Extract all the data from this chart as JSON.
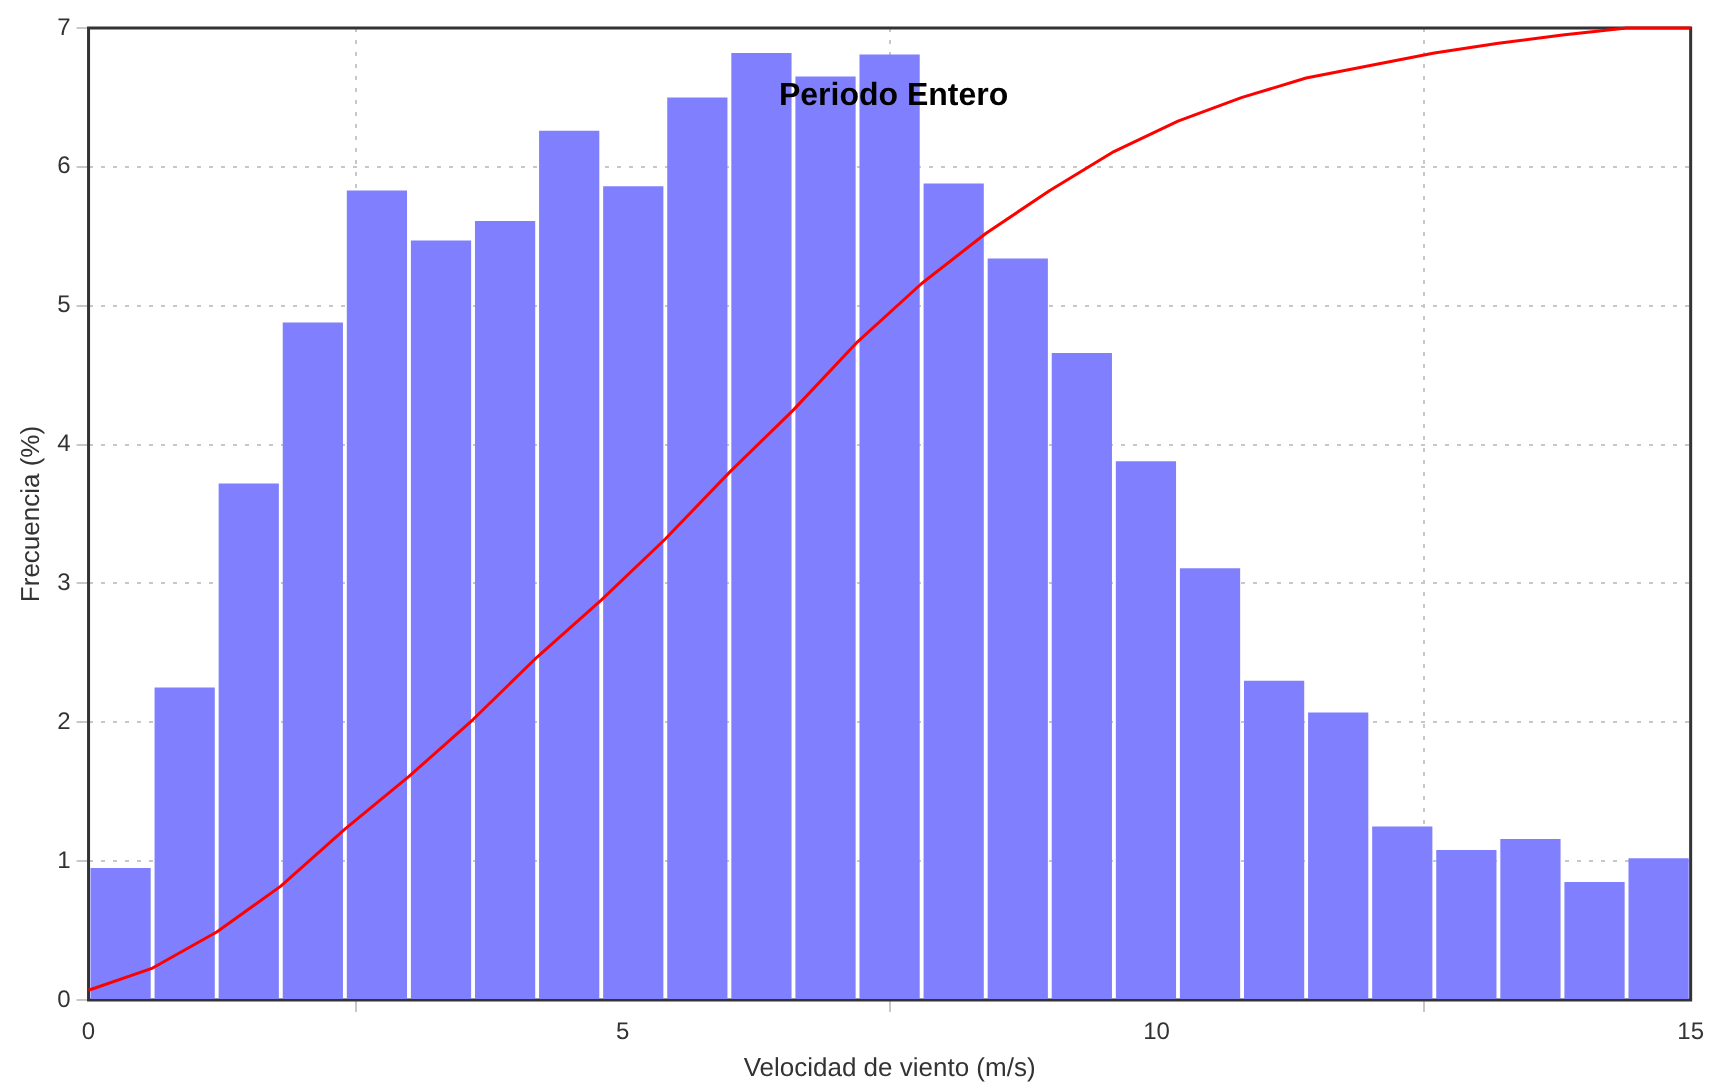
{
  "chart_data": {
    "type": "histogram",
    "title": "Periodo Entero",
    "xlabel": "Velocidad de viento (m/s)",
    "ylabel": "Frecuencia (%)",
    "xlim": [
      0,
      15
    ],
    "xticks": [
      0,
      5,
      10,
      15
    ],
    "ylim": [
      0,
      7
    ],
    "yticks": [
      0,
      1,
      2,
      3,
      4,
      5,
      6,
      7
    ],
    "grid": true,
    "legend": false,
    "series": [
      {
        "color": "#8080ff",
        "bins": [
          0,
          0.6,
          1.2,
          1.8,
          2.4,
          3,
          3.6,
          4.2,
          4.8,
          5.4,
          6,
          6.6,
          7.2,
          7.8,
          8.4,
          9,
          9.6,
          10.2,
          10.8,
          11.4,
          12,
          12.6,
          13.2,
          13.8,
          14.4,
          15
        ],
        "values": [
          0.95,
          2.25,
          3.72,
          4.88,
          5.83,
          5.47,
          5.61,
          6.26,
          5.86,
          6.5,
          6.82,
          6.65,
          6.81,
          5.88,
          5.34,
          4.66,
          3.88,
          3.11,
          2.3,
          2.07,
          1.25,
          1.08,
          1.16,
          0.85,
          1.02
        ]
      },
      {
        "type": "line",
        "color": "#ff0000",
        "x": [
          0,
          0.6,
          1.2,
          1.8,
          2.4,
          3,
          3.6,
          4.2,
          4.8,
          5.4,
          6,
          6.6,
          7.2,
          7.8,
          8.4,
          9,
          9.6,
          10.2,
          10.8,
          11.4,
          12,
          12.6,
          13.2,
          13.8,
          14.4,
          15
        ],
        "values": [
          0.07,
          0.23,
          0.49,
          0.82,
          1.23,
          1.61,
          2.02,
          2.47,
          2.88,
          3.32,
          3.8,
          4.25,
          4.74,
          5.16,
          5.52,
          5.83,
          6.11,
          6.33,
          6.5,
          6.64,
          6.73,
          6.82,
          6.89,
          6.95,
          7,
          7
        ]
      }
    ]
  }
}
